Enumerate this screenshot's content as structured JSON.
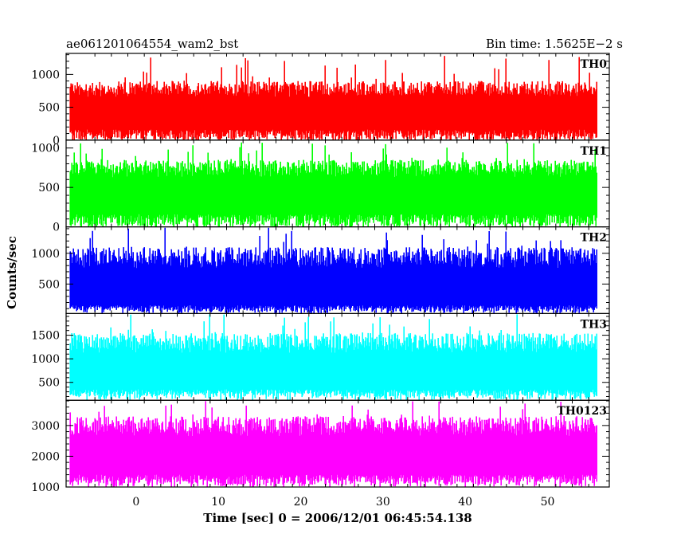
{
  "header": {
    "left": "ae061201064554_wam2_bst",
    "right": "Bin time: 1.5625E−2 s"
  },
  "chart_data": {
    "type": "line",
    "xlabel": "Time [sec] 0 = 2006/12/01 06:45:54.138",
    "ylabel": "Counts/sec",
    "xlim": [
      -8.5,
      57.5
    ],
    "x_data_range": [
      -8,
      56
    ],
    "x_ticks": [
      0,
      10,
      20,
      30,
      40,
      50
    ],
    "panels": [
      {
        "label": "TH0",
        "color": "#ff0000",
        "ylim": [
          0,
          1320
        ],
        "yticks": [
          0,
          500,
          1000
        ],
        "level": [
          20,
          300,
          900
        ],
        "peak": 1300
      },
      {
        "label": "TH1",
        "color": "#00ff00",
        "ylim": [
          0,
          1100
        ],
        "yticks": [
          0,
          500,
          1000
        ],
        "level": [
          20,
          300,
          850
        ],
        "peak": 1070
      },
      {
        "label": "TH2",
        "color": "#0000ff",
        "ylim": [
          20,
          1430
        ],
        "yticks": [
          500,
          1000
        ],
        "level": [
          60,
          250,
          1100
        ],
        "peak": 1420
      },
      {
        "label": "TH3",
        "color": "#00ffff",
        "ylim": [
          120,
          1960
        ],
        "yticks": [
          500,
          1000,
          1500
        ],
        "level": [
          200,
          500,
          1550
        ],
        "peak": 1950
      },
      {
        "label": "TH0123",
        "color": "#ff00ff",
        "ylim": [
          1000,
          3820
        ],
        "yticks": [
          1000,
          2000,
          3000
        ],
        "level": [
          1100,
          1700,
          3300
        ],
        "peak": 3800
      }
    ]
  }
}
